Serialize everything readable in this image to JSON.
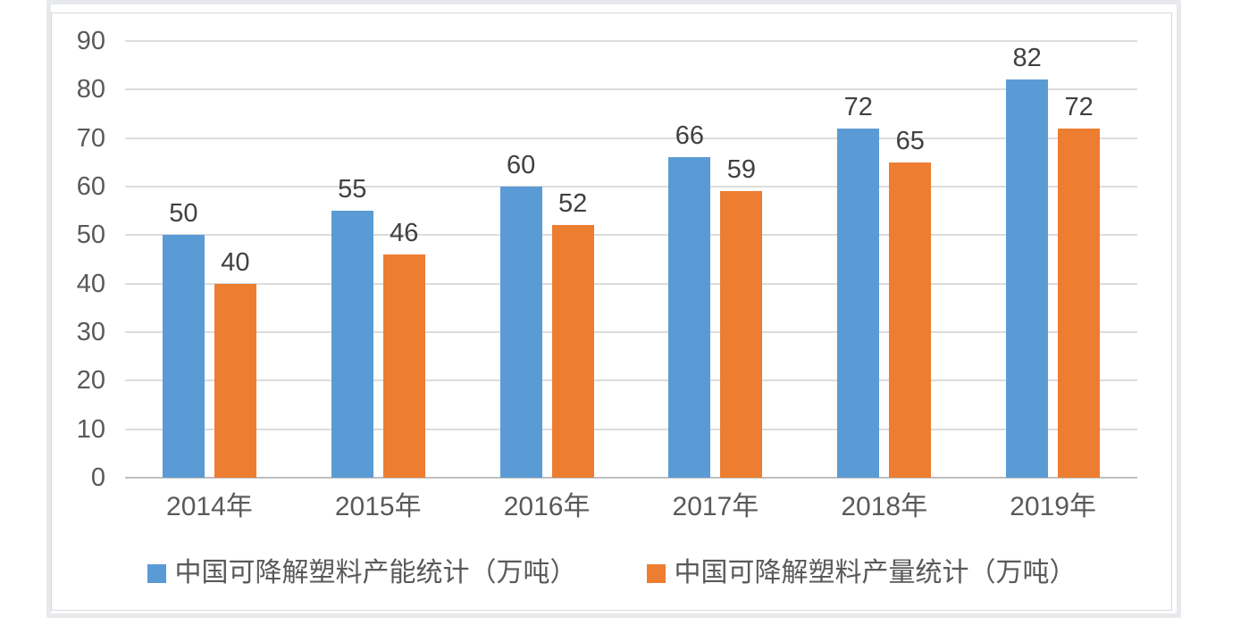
{
  "chart_data": {
    "type": "bar",
    "title": "",
    "xlabel": "",
    "ylabel": "",
    "categories": [
      "2014年",
      "2015年",
      "2016年",
      "2017年",
      "2018年",
      "2019年"
    ],
    "series": [
      {
        "name": "中国可降解塑料产能统计（万吨）",
        "color": "#5B9BD5",
        "values": [
          50,
          55,
          60,
          66,
          72,
          82
        ]
      },
      {
        "name": "中国可降解塑料产量统计（万吨）",
        "color": "#ED7D31",
        "values": [
          40,
          46,
          52,
          59,
          65,
          72
        ]
      }
    ],
    "ylim": [
      0,
      90
    ],
    "yticks": [
      0,
      10,
      20,
      30,
      40,
      50,
      60,
      70,
      80,
      90
    ],
    "grid": true,
    "data_labels": true,
    "legend_position": "bottom"
  },
  "colors": {
    "series_capacity": "#5B9BD5",
    "series_output": "#ED7D31",
    "gridline": "#DCDCDC",
    "axis_line": "#BFBFBF",
    "tick_label": "#595959",
    "data_label": "#404040",
    "legend_label": "#595959",
    "frame_border": "#E7E9EC",
    "chart_border": "#D9D9D9",
    "background": "#FFFFFF"
  }
}
